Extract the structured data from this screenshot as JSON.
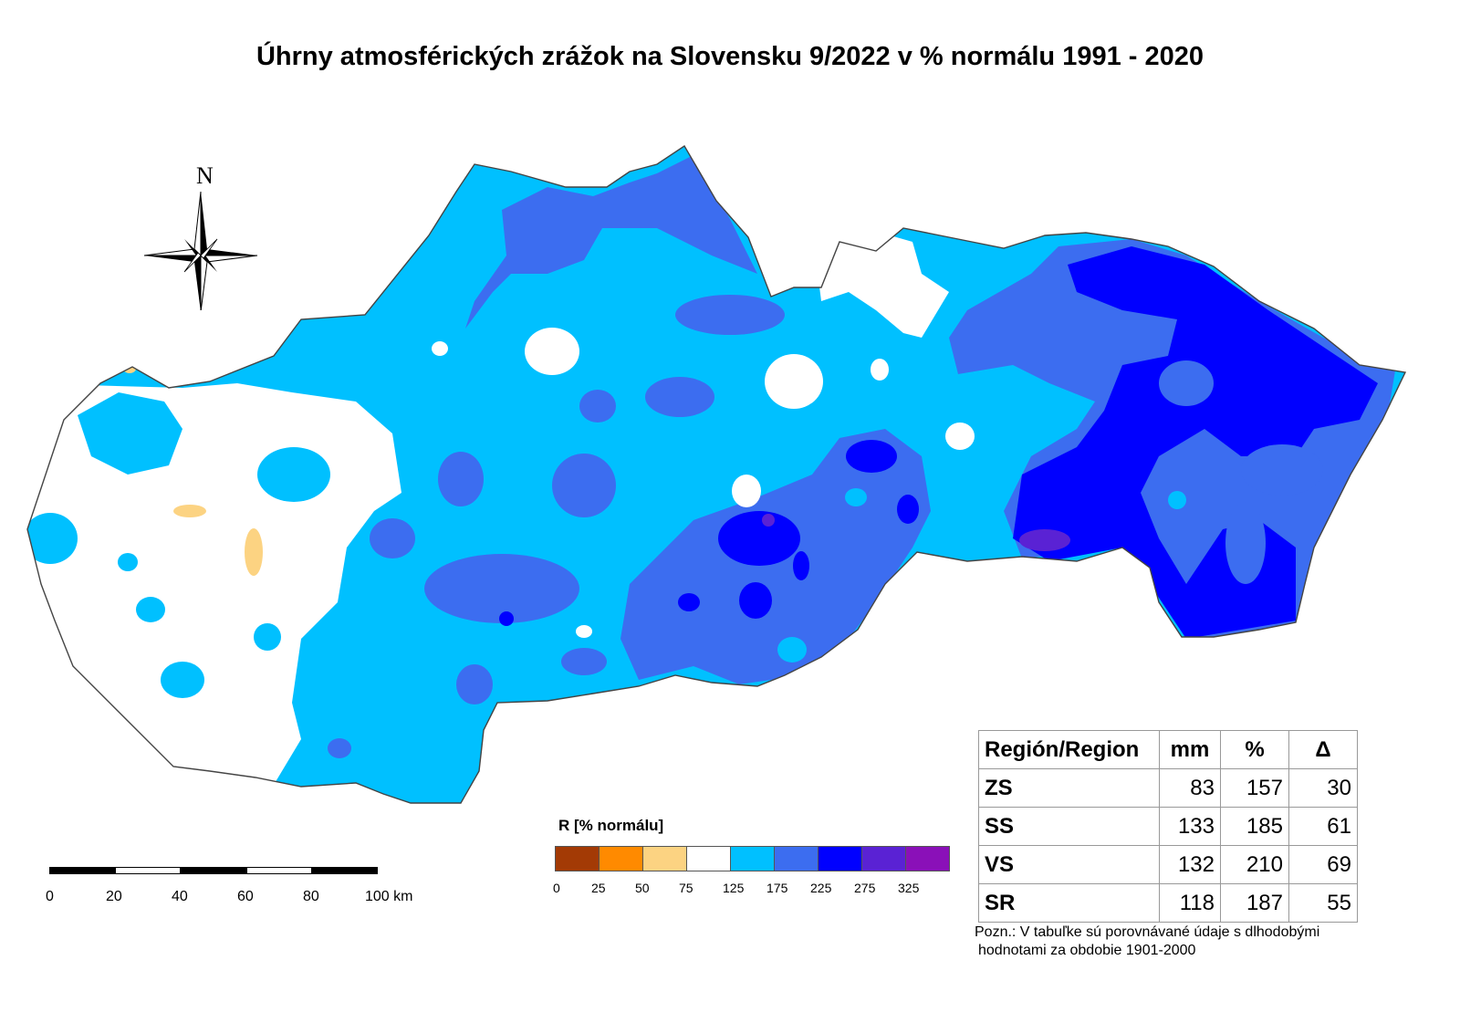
{
  "title": "Úhrny atmosférických zrážok na Slovensku 9/2022 v % normálu 1991 - 2020",
  "compass": {
    "north_label": "N"
  },
  "scalebar": {
    "ticks": [
      "0",
      "20",
      "40",
      "60",
      "80",
      "100 km"
    ]
  },
  "legend": {
    "title": "R [% normálu]",
    "colors": [
      "#a33a05",
      "#ff8a00",
      "#fcd382",
      "#ffffff",
      "#00c0ff",
      "#3c6df0",
      "#0000ff",
      "#5a22d4",
      "#8a10b8"
    ],
    "ticks": [
      "0",
      "25",
      "50",
      "75",
      "125",
      "175",
      "225",
      "275",
      "325"
    ]
  },
  "map_colors": {
    "outline": "#444444",
    "class_75_125": "#ffffff",
    "class_125_175": "#00c0ff",
    "class_175_225": "#3c6df0",
    "class_225_275": "#0000ff",
    "class_275_325": "#5a22d4",
    "class_50_75": "#fcd382"
  },
  "table": {
    "headers": [
      "Región/Region",
      "mm",
      "%",
      "Δ"
    ],
    "rows": [
      [
        "ZS",
        "83",
        "157",
        "30"
      ],
      [
        "SS",
        "133",
        "185",
        "61"
      ],
      [
        "VS",
        "132",
        "210",
        "69"
      ],
      [
        "SR",
        "118",
        "187",
        "55"
      ]
    ]
  },
  "note": {
    "line1": "Pozn.: V tabuľke sú porovnávané údaje s dlhodobými",
    "line2": "hodnotami za obdobie 1901-2000"
  }
}
